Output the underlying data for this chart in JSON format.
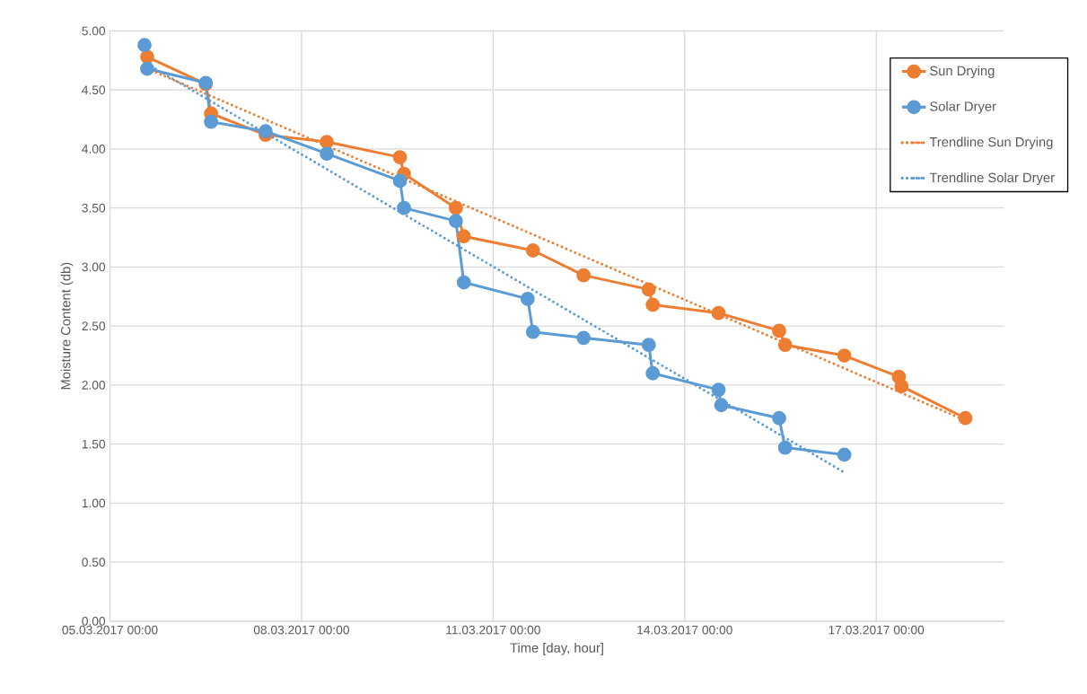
{
  "chart_data": {
    "type": "line",
    "xlabel": "Time [day, hour]",
    "ylabel": "Moisture Content (db)",
    "xlim": [
      "2017-03-05",
      "2017-03-19"
    ],
    "xticks": [
      {
        "value": "2017-03-05",
        "label": "05.03.2017 00:00"
      },
      {
        "value": "2017-03-08",
        "label": "08.03.2017 00:00"
      },
      {
        "value": "2017-03-11",
        "label": "11.03.2017 00:00"
      },
      {
        "value": "2017-03-14",
        "label": "14.03.2017 00:00"
      },
      {
        "value": "2017-03-17",
        "label": "17.03.2017 00:00"
      }
    ],
    "ylim": [
      0,
      5
    ],
    "yticks": [
      {
        "value": 0,
        "label": "0.00"
      },
      {
        "value": 0.5,
        "label": "0.50"
      },
      {
        "value": 1,
        "label": "1.00"
      },
      {
        "value": 1.5,
        "label": "1.50"
      },
      {
        "value": 2,
        "label": "2.00"
      },
      {
        "value": 2.5,
        "label": "2.50"
      },
      {
        "value": 3,
        "label": "3.00"
      },
      {
        "value": 3.5,
        "label": "3.50"
      },
      {
        "value": 4,
        "label": "4.00"
      },
      {
        "value": 4.5,
        "label": "4.50"
      },
      {
        "value": 5,
        "label": "5.00"
      }
    ],
    "grid": true,
    "legend": "top right",
    "marker": "circle",
    "line_style": "solid",
    "series": [
      {
        "name": "Sun Drying",
        "color": "#ed7d31",
        "x": [
          "2017-03-05T14:00",
          "2017-03-06T12:00",
          "2017-03-06T14:00",
          "2017-03-07T10:30",
          "2017-03-08T09:30",
          "2017-03-09T13:00",
          "2017-03-09T14:30",
          "2017-03-10T10:00",
          "2017-03-10T13:00",
          "2017-03-11T15:00",
          "2017-03-12T10:00",
          "2017-03-13T10:30",
          "2017-03-13T12:00",
          "2017-03-14T12:45",
          "2017-03-15T11:30",
          "2017-03-15T13:45",
          "2017-03-16T12:00",
          "2017-03-17T08:30",
          "2017-03-17T09:30",
          "2017-03-18T09:30"
        ],
        "values": [
          4.78,
          4.55,
          4.3,
          4.12,
          4.06,
          3.93,
          3.79,
          3.5,
          3.26,
          3.14,
          2.93,
          2.81,
          2.68,
          2.61,
          2.46,
          2.34,
          2.25,
          2.07,
          1.99,
          1.72
        ]
      },
      {
        "name": "Solar Dryer",
        "color": "#5b9bd5",
        "x": [
          "2017-03-05T13:00",
          "2017-03-05T14:00",
          "2017-03-06T12:00",
          "2017-03-06T14:00",
          "2017-03-07T10:30",
          "2017-03-08T09:30",
          "2017-03-09T13:00",
          "2017-03-09T14:30",
          "2017-03-10T10:00",
          "2017-03-10T13:00",
          "2017-03-11T13:00",
          "2017-03-11T15:00",
          "2017-03-12T10:00",
          "2017-03-13T10:30",
          "2017-03-13T12:00",
          "2017-03-14T12:45",
          "2017-03-14T13:45",
          "2017-03-15T11:30",
          "2017-03-15T13:45",
          "2017-03-16T12:00"
        ],
        "values": [
          4.88,
          4.68,
          4.56,
          4.23,
          4.15,
          3.96,
          3.73,
          3.5,
          3.39,
          2.87,
          2.73,
          2.45,
          2.4,
          2.34,
          2.1,
          1.96,
          1.83,
          1.72,
          1.47,
          1.41
        ]
      },
      {
        "name": "Trendline Sun Drying",
        "color": "#ed7d31",
        "marker": "none",
        "line_style": "dotted",
        "x": [
          "2017-03-05T14:00",
          "2017-03-18T09:30"
        ],
        "values": [
          4.68,
          1.7
        ]
      },
      {
        "name": "Trendline Solar Dryer",
        "color": "#5b9bd5",
        "marker": "none",
        "line_style": "dotted",
        "x": [
          "2017-03-05T14:00",
          "2017-03-16T12:00"
        ],
        "values": [
          4.72,
          1.26
        ]
      }
    ]
  }
}
